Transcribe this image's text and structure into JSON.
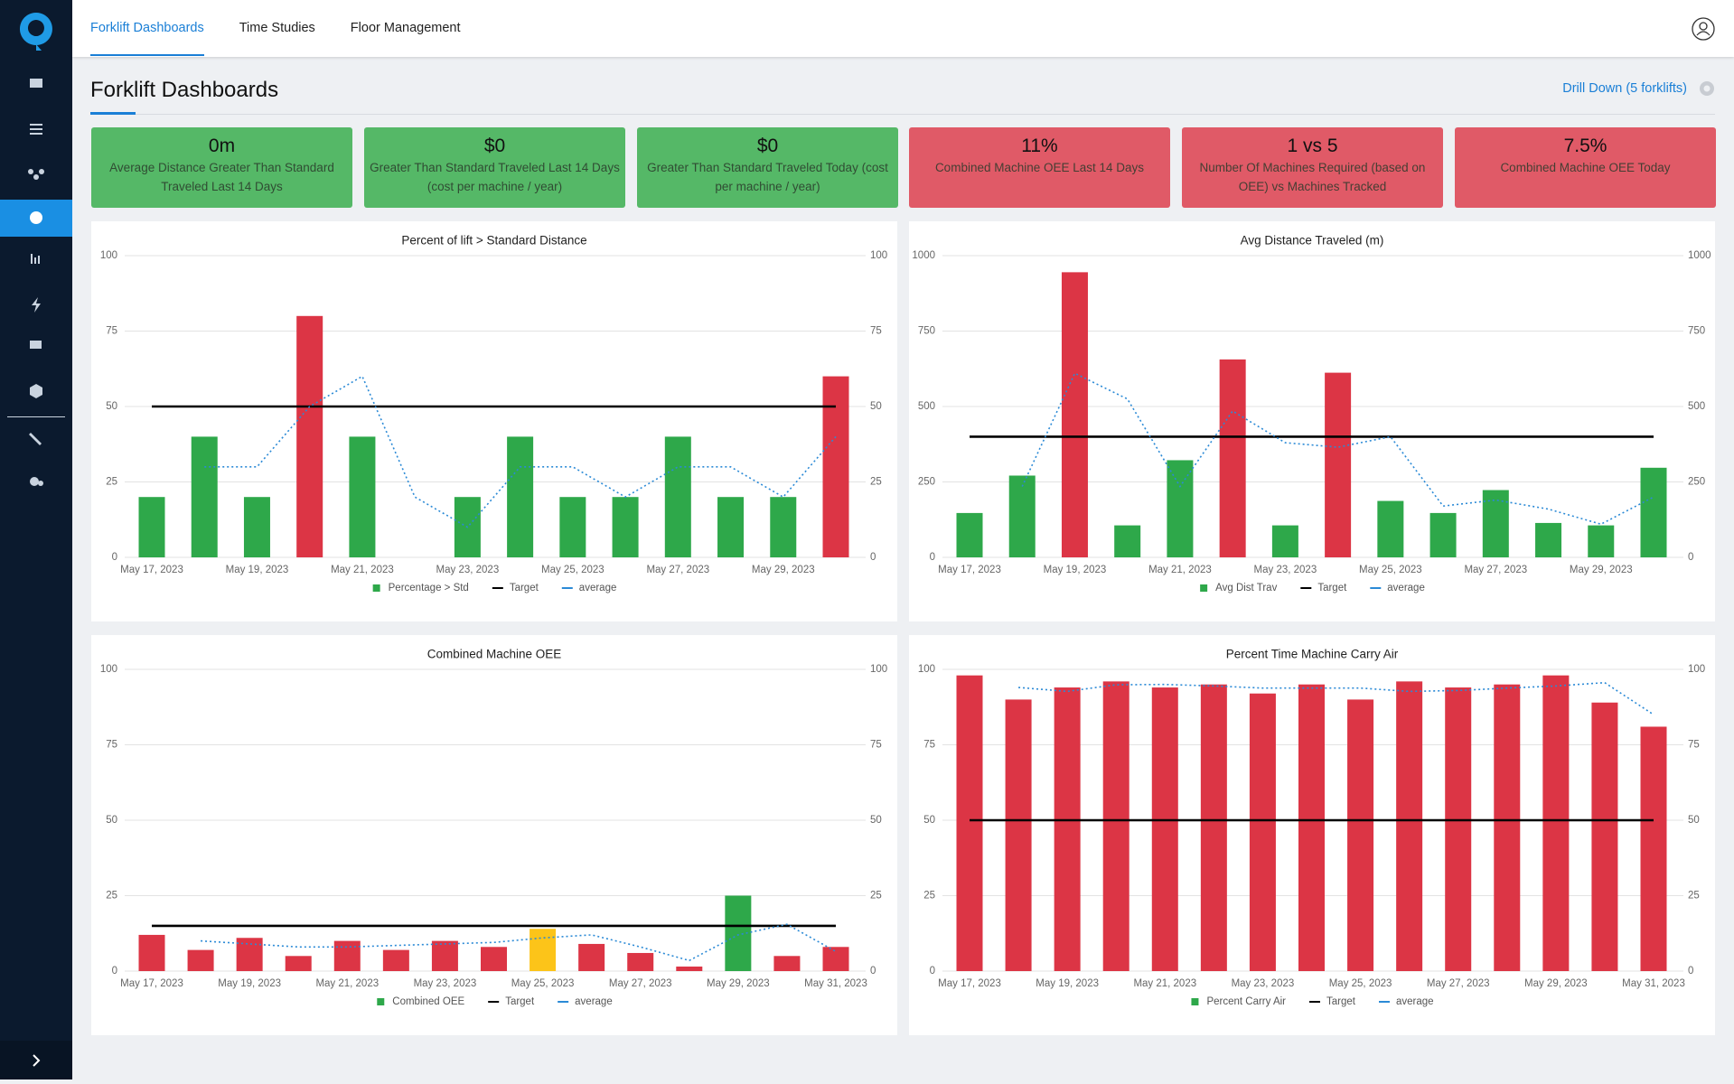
{
  "nav": {
    "tabs": [
      "Forklift Dashboards",
      "Time Studies",
      "Floor Management"
    ],
    "active": 0
  },
  "header": {
    "title": "Forklift Dashboards",
    "drill_down": "Drill Down (5 forklifts)"
  },
  "kpis": [
    {
      "value": "0m",
      "label": "Average Distance Greater Than Standard Traveled Last 14 Days",
      "color": "#55b867"
    },
    {
      "value": "$0",
      "label": "Greater Than Standard Traveled Last 14 Days (cost per machine / year)",
      "color": "#55b867"
    },
    {
      "value": "$0",
      "label": "Greater Than Standard Traveled Today (cost per machine / year)",
      "color": "#55b867"
    },
    {
      "value": "11%",
      "label": "Combined Machine OEE Last 14 Days",
      "color": "#e05a67"
    },
    {
      "value": "1 vs 5",
      "label": "Number Of Machines Required (based on OEE) vs Machines Tracked",
      "color": "#e05a67"
    },
    {
      "value": "7.5%",
      "label": "Combined Machine OEE Today",
      "color": "#e05a67"
    }
  ],
  "chart_data": [
    {
      "type": "bar",
      "title": "Percent of lift > Standard Distance",
      "categories": [
        "May 17, 2023",
        null,
        "May 19, 2023",
        null,
        "May 21, 2023",
        null,
        "May 23, 2023",
        null,
        "May 25, 2023",
        null,
        "May 27, 2023",
        null,
        "May 29, 2023",
        null
      ],
      "series": [
        {
          "name": "Percentage > Std",
          "color": "#2ea84a",
          "colors": [
            "#2ea84a",
            "#2ea84a",
            "#2ea84a",
            "#dc3545",
            "#2ea84a",
            "#2ea84a",
            "#2ea84a",
            "#2ea84a",
            "#2ea84a",
            "#2ea84a",
            "#2ea84a",
            "#2ea84a",
            "#2ea84a",
            "#dc3545"
          ],
          "values": [
            20,
            40,
            20,
            80,
            40,
            0,
            20,
            40,
            20,
            20,
            40,
            20,
            20,
            60
          ]
        },
        {
          "name": "Target",
          "color": "#000000",
          "type": "line",
          "values": [
            50,
            50,
            50,
            50,
            50,
            50,
            50,
            50,
            50,
            50,
            50,
            50,
            50,
            50
          ]
        },
        {
          "name": "average",
          "color": "#2b8ad6",
          "type": "line",
          "dotted": true,
          "values": [
            null,
            30,
            30,
            50,
            60,
            20,
            10,
            30,
            30,
            20,
            30,
            30,
            20,
            40
          ]
        }
      ],
      "ylim": [
        0,
        100
      ],
      "yticks": [
        0,
        25,
        50,
        75,
        100
      ],
      "y2lim": [
        0,
        100
      ],
      "y2ticks": [
        0,
        25,
        50,
        75,
        100
      ],
      "grid": true
    },
    {
      "type": "bar",
      "title": "Avg Distance Traveled (m)",
      "categories": [
        "May 17, 2023",
        null,
        "May 19, 2023",
        null,
        "May 21, 2023",
        null,
        "May 23, 2023",
        null,
        "May 25, 2023",
        null,
        "May 27, 2023",
        null,
        "May 29, 2023",
        null
      ],
      "series": [
        {
          "name": "Avg Dist Trav",
          "color": "#2ea84a",
          "colors": [
            "#2ea84a",
            "#2ea84a",
            "#dc3545",
            "#2ea84a",
            "#2ea84a",
            "#dc3545",
            "#2ea84a",
            "#dc3545",
            "#2ea84a",
            "#2ea84a",
            "#2ea84a",
            "#2ea84a",
            "#2ea84a",
            "#2ea84a"
          ],
          "values": [
            147,
            271,
            945,
            106,
            322,
            656,
            106,
            612,
            187,
            147,
            223,
            114,
            106,
            297
          ]
        },
        {
          "name": "Target",
          "color": "#000000",
          "type": "line",
          "values": [
            400,
            400,
            400,
            400,
            400,
            400,
            400,
            400,
            400,
            400,
            400,
            400,
            400,
            400
          ]
        },
        {
          "name": "average",
          "color": "#2b8ad6",
          "type": "line",
          "dotted": true,
          "values": [
            null,
            235,
            610,
            525,
            235,
            485,
            380,
            365,
            400,
            170,
            190,
            160,
            110,
            200
          ]
        }
      ],
      "ylim": [
        0,
        1000
      ],
      "yticks": [
        0,
        250,
        500,
        750,
        1000
      ],
      "y2lim": [
        0,
        1000
      ],
      "y2ticks": [
        0,
        250,
        500,
        750,
        1000
      ],
      "grid": true
    },
    {
      "type": "bar",
      "title": "Combined Machine OEE",
      "categories": [
        "May 17, 2023",
        null,
        "May 19, 2023",
        null,
        "May 21, 2023",
        null,
        "May 23, 2023",
        null,
        "May 25, 2023",
        null,
        "May 27, 2023",
        null,
        "May 29, 2023",
        null,
        "May 31, 2023"
      ],
      "series": [
        {
          "name": "Combined OEE",
          "color": "#2ea84a",
          "colors": [
            "#dc3545",
            "#dc3545",
            "#dc3545",
            "#dc3545",
            "#dc3545",
            "#dc3545",
            "#dc3545",
            "#dc3545",
            "#fcc419",
            "#dc3545",
            "#dc3545",
            "#dc3545",
            "#2ea84a",
            "#dc3545",
            "#dc3545"
          ],
          "values": [
            12,
            7,
            11,
            5,
            10,
            7,
            10,
            8,
            14,
            9,
            6,
            1.5,
            25,
            5,
            8
          ]
        },
        {
          "name": "Target",
          "color": "#000000",
          "type": "line",
          "values": [
            15,
            15,
            15,
            15,
            15,
            15,
            15,
            15,
            15,
            15,
            15,
            15,
            15,
            15,
            15
          ]
        },
        {
          "name": "average",
          "color": "#2b8ad6",
          "type": "line",
          "dotted": true,
          "values": [
            null,
            10,
            9,
            8,
            8,
            8.5,
            9,
            9.5,
            11,
            12,
            8,
            3.5,
            12,
            15.5,
            6.5
          ]
        }
      ],
      "ylim": [
        0,
        100
      ],
      "yticks": [
        0,
        25,
        50,
        75,
        100
      ],
      "y2lim": [
        0,
        100
      ],
      "y2ticks": [
        0,
        25,
        50,
        75,
        100
      ],
      "grid": true
    },
    {
      "type": "bar",
      "title": "Percent Time Machine Carry Air",
      "categories": [
        "May 17, 2023",
        null,
        "May 19, 2023",
        null,
        "May 21, 2023",
        null,
        "May 23, 2023",
        null,
        "May 25, 2023",
        null,
        "May 27, 2023",
        null,
        "May 29, 2023",
        null,
        "May 31, 2023"
      ],
      "series": [
        {
          "name": "Percent Carry Air",
          "color": "#2ea84a",
          "colors": [
            "#dc3545",
            "#dc3545",
            "#dc3545",
            "#dc3545",
            "#dc3545",
            "#dc3545",
            "#dc3545",
            "#dc3545",
            "#dc3545",
            "#dc3545",
            "#dc3545",
            "#dc3545",
            "#dc3545",
            "#dc3545",
            "#dc3545"
          ],
          "values": [
            98,
            90,
            94,
            96,
            94,
            95,
            92,
            95,
            90,
            96,
            94,
            95,
            98,
            89,
            81
          ]
        },
        {
          "name": "Target",
          "color": "#000000",
          "type": "line",
          "values": [
            50,
            50,
            50,
            50,
            50,
            50,
            50,
            50,
            50,
            50,
            50,
            50,
            50,
            50,
            50
          ]
        },
        {
          "name": "average",
          "color": "#2b8ad6",
          "type": "line",
          "dotted": true,
          "values": [
            null,
            94,
            92.7,
            94.9,
            95,
            94.5,
            93.8,
            93.8,
            93.8,
            92.7,
            93,
            93.8,
            94.5,
            95.6,
            85
          ]
        }
      ],
      "ylim": [
        0,
        100
      ],
      "yticks": [
        0,
        25,
        50,
        75,
        100
      ],
      "y2lim": [
        0,
        100
      ],
      "y2ticks": [
        0,
        25,
        50,
        75,
        100
      ],
      "grid": true
    }
  ]
}
